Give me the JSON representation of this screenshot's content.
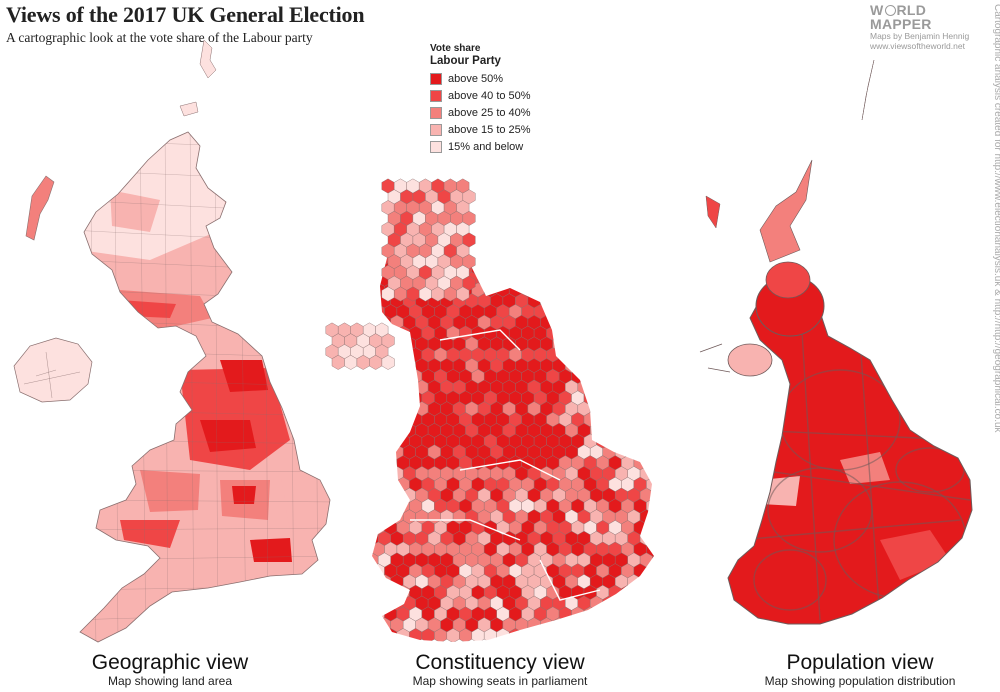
{
  "header": {
    "title": "Views of the 2017 UK General Election",
    "subtitle": "A cartographic look at the vote share of the Labour party"
  },
  "branding": {
    "wordmark_line1_a": "W",
    "wordmark_line1_b": "RLD",
    "wordmark_line2": "MAPPER",
    "byline": "Maps by Benjamin Hennig",
    "website": "www.viewsoftheworld.net",
    "credit": "Cartographic analysis created for http://www.electionanalysis.uk & http://http://geographical.co.uk"
  },
  "legend": {
    "title": "Vote share",
    "subtitle": "Labour Party",
    "items": [
      {
        "label": "above 50%",
        "color": "#e31a1c"
      },
      {
        "label": "above 40 to 50%",
        "color": "#ef4646"
      },
      {
        "label": "above 25 to 40%",
        "color": "#f3807c"
      },
      {
        "label": "above 15 to 25%",
        "color": "#f8b3b0"
      },
      {
        "label": "15% and below",
        "color": "#fde1df"
      }
    ]
  },
  "views": [
    {
      "title": "Geographic view",
      "subtitle": "Map showing land area"
    },
    {
      "title": "Constituency view",
      "subtitle": "Map showing seats in parliament"
    },
    {
      "title": "Population view",
      "subtitle": "Map showing population distribution"
    }
  ],
  "colors": {
    "border": "#8a6f6f",
    "text": "#222222",
    "muted": "#9a9a9a"
  }
}
